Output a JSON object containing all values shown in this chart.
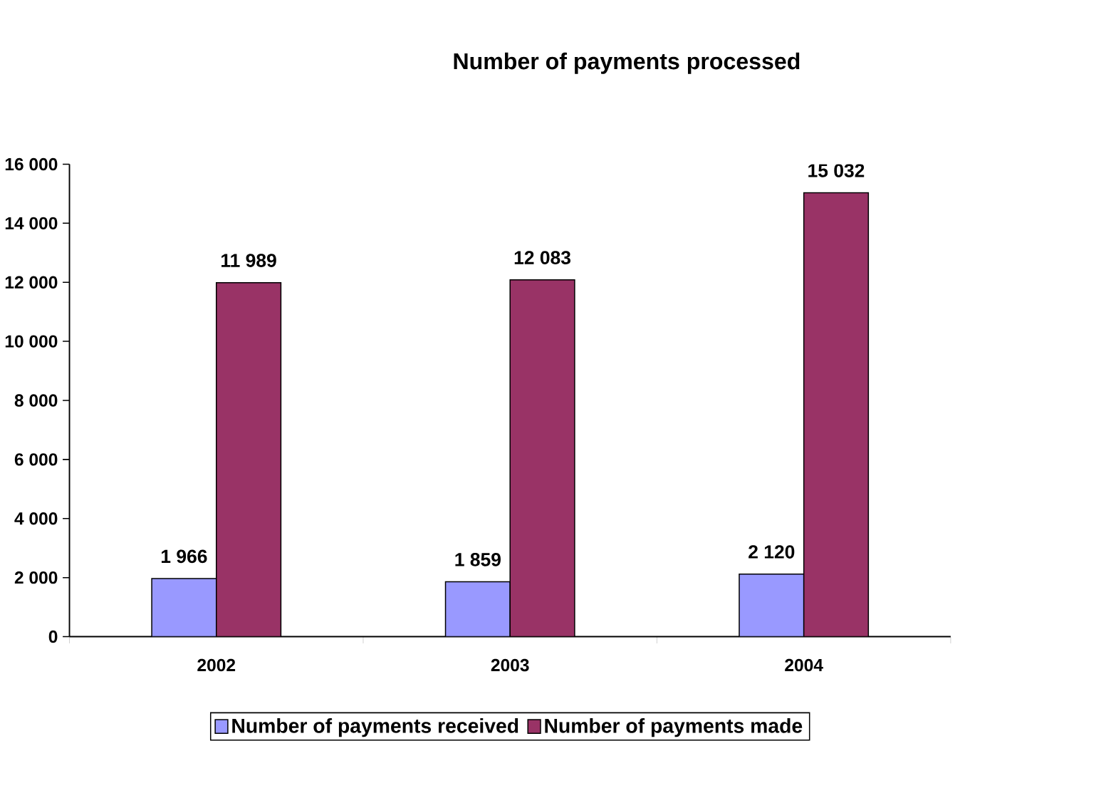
{
  "chart_data": {
    "type": "bar",
    "title": "Number of payments processed",
    "categories": [
      "2002",
      "2003",
      "2004"
    ],
    "series": [
      {
        "name": "Number of payments received",
        "color": "#9999ff",
        "values": [
          1966,
          1859,
          2120
        ],
        "value_labels": [
          "1 966",
          "1 859",
          "2 120"
        ]
      },
      {
        "name": "Number of payments made",
        "color": "#993366",
        "values": [
          11989,
          12083,
          15032
        ],
        "value_labels": [
          "11 989",
          "12 083",
          "15 032"
        ]
      }
    ],
    "ylim": [
      0,
      16000
    ],
    "yticks": [
      0,
      {
        "value": 2000,
        "label": "2 000"
      },
      {
        "value": 4000,
        "label": "4 000"
      },
      {
        "value": 6000,
        "label": "6 000"
      },
      {
        "value": 8000,
        "label": "8 000"
      },
      {
        "value": 10000,
        "label": "10 000"
      },
      {
        "value": 12000,
        "label": "12 000"
      },
      {
        "value": 14000,
        "label": "14 000"
      },
      {
        "value": 16000,
        "label": "16 000"
      }
    ],
    "legend": "bottom",
    "grid": false
  }
}
